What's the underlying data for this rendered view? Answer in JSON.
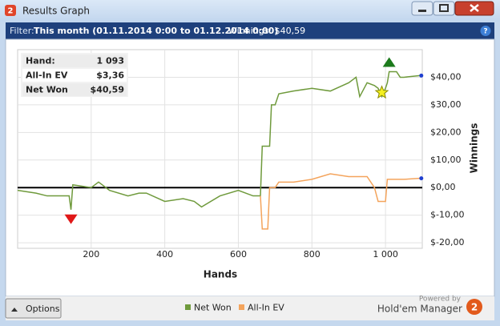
{
  "window": {
    "title": "Results Graph"
  },
  "filter": {
    "label": "Filter:",
    "range": "This month (01.11.2014 0:00 to 01.12.2014 0:00)",
    "winnings": "Winnings: $40,59"
  },
  "stats": {
    "rows": [
      [
        "Hand:",
        "1 093"
      ],
      [
        "All-In EV",
        "$3,36"
      ],
      [
        "Net Won",
        "$40,59"
      ]
    ]
  },
  "chart_data": {
    "type": "line",
    "x_label": "Hands",
    "y_label": "Winnings",
    "x": [
      0,
      50,
      80,
      140,
      145,
      150,
      200,
      220,
      250,
      300,
      330,
      350,
      400,
      450,
      480,
      500,
      550,
      600,
      640,
      660,
      665,
      680,
      685,
      690,
      700,
      710,
      750,
      800,
      850,
      900,
      920,
      930,
      950,
      970,
      980,
      990,
      1000,
      1005,
      1010,
      1030,
      1040,
      1050,
      1093
    ],
    "series": [
      {
        "name": "Net Won",
        "color": "#6f9a3c",
        "values": [
          -1,
          -2,
          -3,
          -3,
          -8,
          1,
          0,
          2,
          -1,
          -3,
          -2,
          -2,
          -5,
          -4,
          -5,
          -7,
          -3,
          -1,
          -3,
          -3,
          15,
          15,
          15,
          30,
          30,
          34,
          35,
          36,
          35,
          38,
          40,
          33,
          38,
          37,
          36,
          33,
          36,
          38,
          42,
          42,
          40,
          40,
          40.59
        ]
      },
      {
        "name": "All-In EV",
        "color": "#f4a45c",
        "values": [
          null,
          null,
          null,
          null,
          null,
          null,
          null,
          null,
          null,
          null,
          null,
          null,
          null,
          null,
          null,
          null,
          null,
          null,
          null,
          -3,
          -15,
          -15,
          0,
          0,
          0,
          2,
          2,
          3,
          5,
          4,
          4,
          4,
          4,
          0,
          -5,
          -5,
          -5,
          3,
          3,
          3,
          3,
          3,
          3.36
        ]
      }
    ],
    "xlim": [
      0,
      1100
    ],
    "ylim": [
      -22,
      50
    ],
    "xticks": [
      200,
      400,
      600,
      800,
      {
        "value": 1000,
        "label": "1 000"
      }
    ],
    "yticks": [
      {
        "value": -20,
        "label": "$-20,00"
      },
      {
        "value": -10,
        "label": "$-10,00"
      },
      {
        "value": 0,
        "label": "$0,00"
      },
      {
        "value": 10,
        "label": "$10,00"
      },
      {
        "value": 20,
        "label": "$20,00"
      },
      {
        "value": 30,
        "label": "$30,00"
      },
      {
        "value": 40,
        "label": "$40,00"
      }
    ],
    "grid": true
  },
  "footer": {
    "options": "Options",
    "powered": "Powered by",
    "brand": "Hold'em Manager"
  }
}
